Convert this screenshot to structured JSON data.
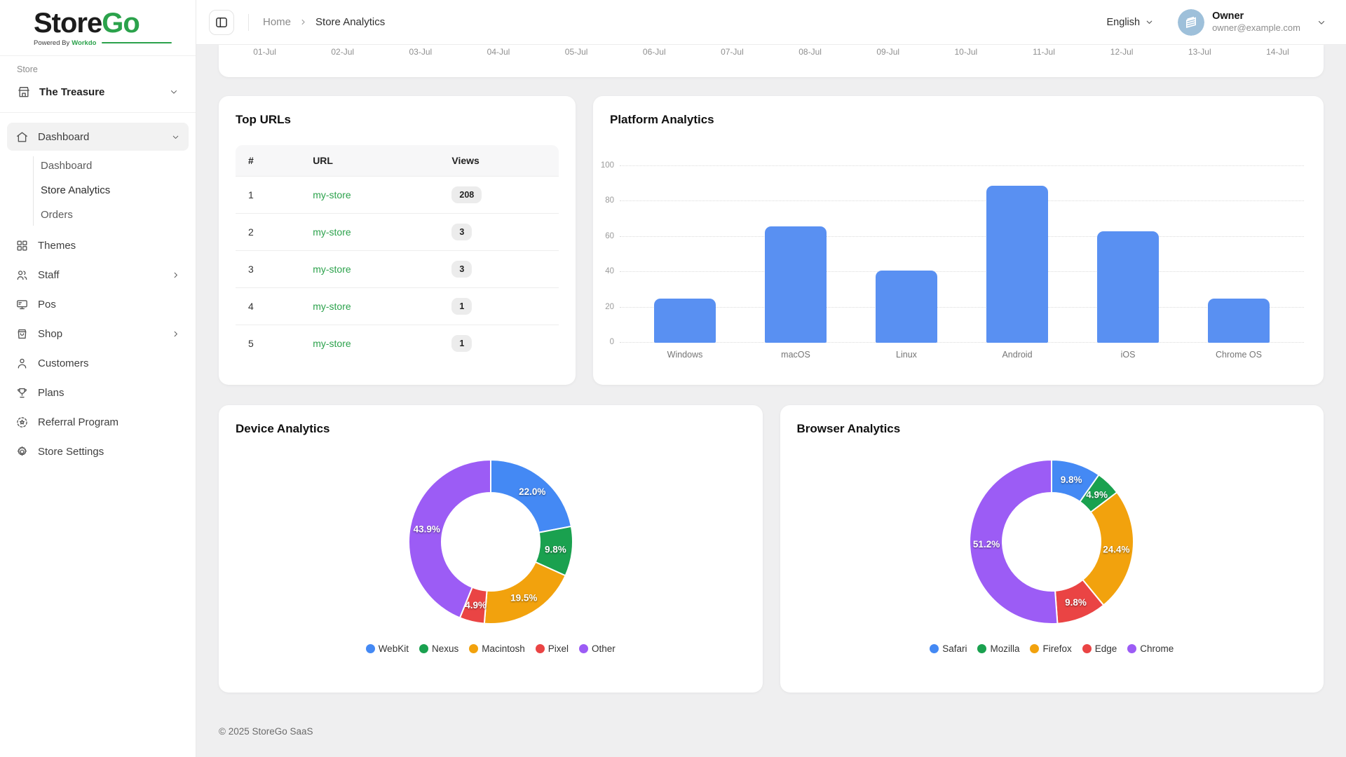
{
  "app": {
    "logo": {
      "part1": "Store",
      "part2": "Go",
      "powered_by": "Powered By",
      "powered_brand": "Workdo"
    },
    "footer": "© 2025 StoreGo SaaS"
  },
  "topbar": {
    "breadcrumb": {
      "home": "Home",
      "current": "Store Analytics"
    },
    "language": "English",
    "user": {
      "name": "Owner",
      "email": "owner@example.com"
    }
  },
  "sidebar": {
    "section_label": "Store",
    "store_name": "The Treasure",
    "dashboard": {
      "label": "Dashboard",
      "children": [
        {
          "label": "Dashboard",
          "active": false
        },
        {
          "label": "Store Analytics",
          "active": true
        },
        {
          "label": "Orders",
          "active": false
        }
      ]
    },
    "items": [
      {
        "label": "Themes"
      },
      {
        "label": "Staff",
        "has_submenu": true
      },
      {
        "label": "Pos"
      },
      {
        "label": "Shop",
        "has_submenu": true
      },
      {
        "label": "Customers"
      },
      {
        "label": "Plans"
      },
      {
        "label": "Referral Program"
      },
      {
        "label": "Store Settings"
      }
    ]
  },
  "top_urls": {
    "title": "Top URLs",
    "columns": [
      "#",
      "URL",
      "Views"
    ],
    "rows": [
      {
        "rank": "1",
        "url": "my-store",
        "views": "208"
      },
      {
        "rank": "2",
        "url": "my-store",
        "views": "3"
      },
      {
        "rank": "3",
        "url": "my-store",
        "views": "3"
      },
      {
        "rank": "4",
        "url": "my-store",
        "views": "1"
      },
      {
        "rank": "5",
        "url": "my-store",
        "views": "1"
      }
    ],
    "link_color": "#2ca24c"
  },
  "chart_data": [
    {
      "id": "visitors-timeline",
      "type": "line",
      "title": "",
      "note": "chart body scrolled out of view; only x-axis labels visible",
      "x_labels": [
        "01-Jul",
        "02-Jul",
        "03-Jul",
        "04-Jul",
        "05-Jul",
        "06-Jul",
        "07-Jul",
        "08-Jul",
        "09-Jul",
        "10-Jul",
        "11-Jul",
        "12-Jul",
        "13-Jul",
        "14-Jul"
      ]
    },
    {
      "id": "platform",
      "type": "bar",
      "title": "Platform Analytics",
      "categories": [
        "Windows",
        "macOS",
        "Linux",
        "Android",
        "iOS",
        "Chrome OS"
      ],
      "values": [
        25,
        66,
        41,
        89,
        63,
        25
      ],
      "ylim": [
        0,
        100
      ],
      "yticks": [
        0,
        20,
        40,
        60,
        80,
        100
      ],
      "bar_color": "#5990F2",
      "grid": "dotted-horizontal",
      "legend_position": "none"
    },
    {
      "id": "device",
      "type": "pie",
      "donut": true,
      "title": "Device Analytics",
      "labels": [
        "WebKit",
        "Nexus",
        "Macintosh",
        "Pixel",
        "Other"
      ],
      "values": [
        22.0,
        9.8,
        19.5,
        4.9,
        43.9
      ],
      "value_labels": [
        "22.0%",
        "9.8%",
        "19.5%",
        "4.9%",
        "43.9%"
      ],
      "colors": [
        "#4489F4",
        "#1AA14F",
        "#F2A20D",
        "#EA4444",
        "#9C5CF5"
      ],
      "legend_position": "bottom"
    },
    {
      "id": "browser",
      "type": "pie",
      "donut": true,
      "title": "Browser Analytics",
      "labels": [
        "Safari",
        "Mozilla",
        "Firefox",
        "Edge",
        "Chrome"
      ],
      "values": [
        9.8,
        4.9,
        24.4,
        9.8,
        51.2
      ],
      "value_labels": [
        "9.8%",
        "4.9%",
        "24.4%",
        "9.8%",
        "51.2%"
      ],
      "colors": [
        "#4489F4",
        "#1AA14F",
        "#F2A20D",
        "#EA4444",
        "#9C5CF5"
      ],
      "legend_position": "bottom"
    }
  ]
}
